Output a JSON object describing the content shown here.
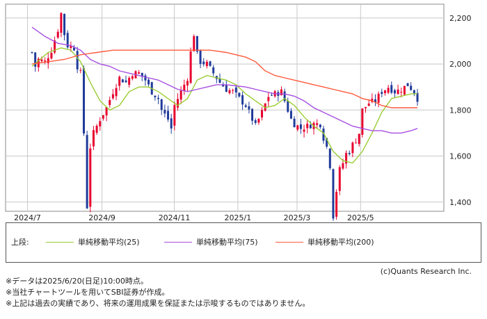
{
  "chart_data": {
    "type": "candlestick",
    "x_ticks": [
      "2024/7",
      "2024/9",
      "2024/11",
      "2025/1",
      "2025/3",
      "2025/5"
    ],
    "y_ticks": [
      "1,400",
      "1,600",
      "1,800",
      "2,000",
      "2,200"
    ],
    "ylim": [
      1360,
      2260
    ],
    "grid": true,
    "price_path": [
      [
        0,
        2050
      ],
      [
        1,
        1990
      ],
      [
        2,
        2020
      ],
      [
        4,
        2010
      ],
      [
        6,
        2060
      ],
      [
        8,
        2150
      ],
      [
        9,
        2220
      ],
      [
        10,
        2130
      ],
      [
        11,
        2080
      ],
      [
        13,
        2070
      ],
      [
        14,
        1990
      ],
      [
        15,
        1960
      ],
      [
        16,
        1700
      ],
      [
        17,
        1380
      ],
      [
        18,
        1640
      ],
      [
        19,
        1700
      ],
      [
        21,
        1760
      ],
      [
        23,
        1810
      ],
      [
        25,
        1880
      ],
      [
        27,
        1940
      ],
      [
        29,
        1920
      ],
      [
        31,
        1960
      ],
      [
        33,
        1960
      ],
      [
        35,
        1930
      ],
      [
        37,
        1880
      ],
      [
        39,
        1850
      ],
      [
        40,
        1800
      ],
      [
        42,
        1760
      ],
      [
        43,
        1720
      ],
      [
        44,
        1820
      ],
      [
        46,
        1880
      ],
      [
        48,
        1940
      ],
      [
        49,
        2050
      ],
      [
        50,
        2130
      ],
      [
        51,
        2040
      ],
      [
        52,
        2010
      ],
      [
        54,
        2000
      ],
      [
        56,
        1960
      ],
      [
        58,
        1920
      ],
      [
        60,
        1890
      ],
      [
        62,
        1880
      ],
      [
        64,
        1850
      ],
      [
        66,
        1820
      ],
      [
        68,
        1760
      ],
      [
        69,
        1730
      ],
      [
        71,
        1790
      ],
      [
        73,
        1860
      ],
      [
        75,
        1870
      ],
      [
        77,
        1880
      ],
      [
        79,
        1800
      ],
      [
        80,
        1760
      ],
      [
        81,
        1740
      ],
      [
        83,
        1720
      ],
      [
        85,
        1730
      ],
      [
        87,
        1740
      ],
      [
        89,
        1740
      ],
      [
        90,
        1680
      ],
      [
        91,
        1640
      ],
      [
        92,
        1560
      ],
      [
        93,
        1340
      ],
      [
        94,
        1450
      ],
      [
        95,
        1540
      ],
      [
        96,
        1570
      ],
      [
        97,
        1610
      ],
      [
        98,
        1620
      ],
      [
        99,
        1650
      ],
      [
        100,
        1670
      ],
      [
        101,
        1700
      ],
      [
        102,
        1800
      ],
      [
        104,
        1830
      ],
      [
        106,
        1840
      ],
      [
        108,
        1880
      ],
      [
        110,
        1900
      ],
      [
        112,
        1880
      ],
      [
        114,
        1890
      ],
      [
        116,
        1910
      ],
      [
        118,
        1880
      ],
      [
        119,
        1850
      ]
    ],
    "series": [
      {
        "name": "単純移動平均(25)",
        "color": "#9acd32",
        "points": [
          [
            0,
            1990
          ],
          [
            5,
            2050
          ],
          [
            9,
            2070
          ],
          [
            12,
            2060
          ],
          [
            15,
            2010
          ],
          [
            18,
            1920
          ],
          [
            21,
            1840
          ],
          [
            24,
            1800
          ],
          [
            27,
            1820
          ],
          [
            30,
            1880
          ],
          [
            33,
            1900
          ],
          [
            36,
            1900
          ],
          [
            39,
            1880
          ],
          [
            42,
            1850
          ],
          [
            45,
            1820
          ],
          [
            48,
            1850
          ],
          [
            51,
            1930
          ],
          [
            54,
            1950
          ],
          [
            57,
            1940
          ],
          [
            60,
            1930
          ],
          [
            63,
            1910
          ],
          [
            66,
            1870
          ],
          [
            69,
            1840
          ],
          [
            72,
            1810
          ],
          [
            75,
            1820
          ],
          [
            78,
            1850
          ],
          [
            81,
            1820
          ],
          [
            84,
            1770
          ],
          [
            87,
            1730
          ],
          [
            90,
            1700
          ],
          [
            93,
            1620
          ],
          [
            96,
            1580
          ],
          [
            99,
            1570
          ],
          [
            102,
            1620
          ],
          [
            105,
            1700
          ],
          [
            108,
            1790
          ],
          [
            111,
            1850
          ],
          [
            114,
            1860
          ],
          [
            117,
            1870
          ],
          [
            119,
            1870
          ]
        ]
      },
      {
        "name": "単純移動平均(75)",
        "color": "#a64ee0",
        "points": [
          [
            0,
            2160
          ],
          [
            4,
            2120
          ],
          [
            8,
            2090
          ],
          [
            12,
            2080
          ],
          [
            15,
            2060
          ],
          [
            18,
            2020
          ],
          [
            21,
            2000
          ],
          [
            24,
            1990
          ],
          [
            27,
            1970
          ],
          [
            30,
            1960
          ],
          [
            33,
            1950
          ],
          [
            36,
            1940
          ],
          [
            39,
            1930
          ],
          [
            42,
            1910
          ],
          [
            45,
            1890
          ],
          [
            48,
            1880
          ],
          [
            51,
            1890
          ],
          [
            54,
            1900
          ],
          [
            57,
            1910
          ],
          [
            60,
            1910
          ],
          [
            63,
            1905
          ],
          [
            66,
            1900
          ],
          [
            69,
            1890
          ],
          [
            72,
            1880
          ],
          [
            75,
            1870
          ],
          [
            78,
            1870
          ],
          [
            81,
            1860
          ],
          [
            84,
            1840
          ],
          [
            87,
            1810
          ],
          [
            90,
            1790
          ],
          [
            93,
            1770
          ],
          [
            96,
            1750
          ],
          [
            99,
            1730
          ],
          [
            102,
            1720
          ],
          [
            105,
            1710
          ],
          [
            108,
            1710
          ],
          [
            111,
            1700
          ],
          [
            114,
            1700
          ],
          [
            117,
            1710
          ],
          [
            119,
            1720
          ]
        ]
      },
      {
        "name": "単純移動平均(200)",
        "color": "#ff5a3c",
        "points": [
          [
            0,
            2000
          ],
          [
            5,
            2010
          ],
          [
            10,
            2020
          ],
          [
            15,
            2040
          ],
          [
            20,
            2050
          ],
          [
            25,
            2060
          ],
          [
            30,
            2060
          ],
          [
            35,
            2060
          ],
          [
            40,
            2060
          ],
          [
            45,
            2060
          ],
          [
            50,
            2060
          ],
          [
            55,
            2060
          ],
          [
            60,
            2050
          ],
          [
            63,
            2040
          ],
          [
            66,
            2030
          ],
          [
            69,
            2010
          ],
          [
            72,
            1970
          ],
          [
            75,
            1950
          ],
          [
            78,
            1940
          ],
          [
            81,
            1930
          ],
          [
            84,
            1920
          ],
          [
            87,
            1910
          ],
          [
            90,
            1900
          ],
          [
            93,
            1890
          ],
          [
            96,
            1880
          ],
          [
            99,
            1870
          ],
          [
            102,
            1850
          ],
          [
            105,
            1840
          ],
          [
            108,
            1820
          ],
          [
            111,
            1810
          ],
          [
            114,
            1810
          ],
          [
            117,
            1810
          ],
          [
            119,
            1810
          ]
        ]
      }
    ]
  },
  "legend": {
    "title": "上段:",
    "items": [
      {
        "label": "単純移動平均(25)",
        "color": "#9acd32"
      },
      {
        "label": "単純移動平均(75)",
        "color": "#a64ee0"
      },
      {
        "label": "単純移動平均(200)",
        "color": "#ff5a3c"
      }
    ]
  },
  "copyright": "(c)Quants Research Inc.",
  "notes": [
    "※データは2025/6/20(日足)10:00時点。",
    "※当社チャートツールを用いてSBI証券が作成。",
    "※上記は過去の実績であり、将来の運用成果を保証または示唆するものではありません。"
  ],
  "colors": {
    "up": "#e8002d",
    "down": "#1f3b9a",
    "grid": "#c8c8c8",
    "frame": "#888888"
  }
}
